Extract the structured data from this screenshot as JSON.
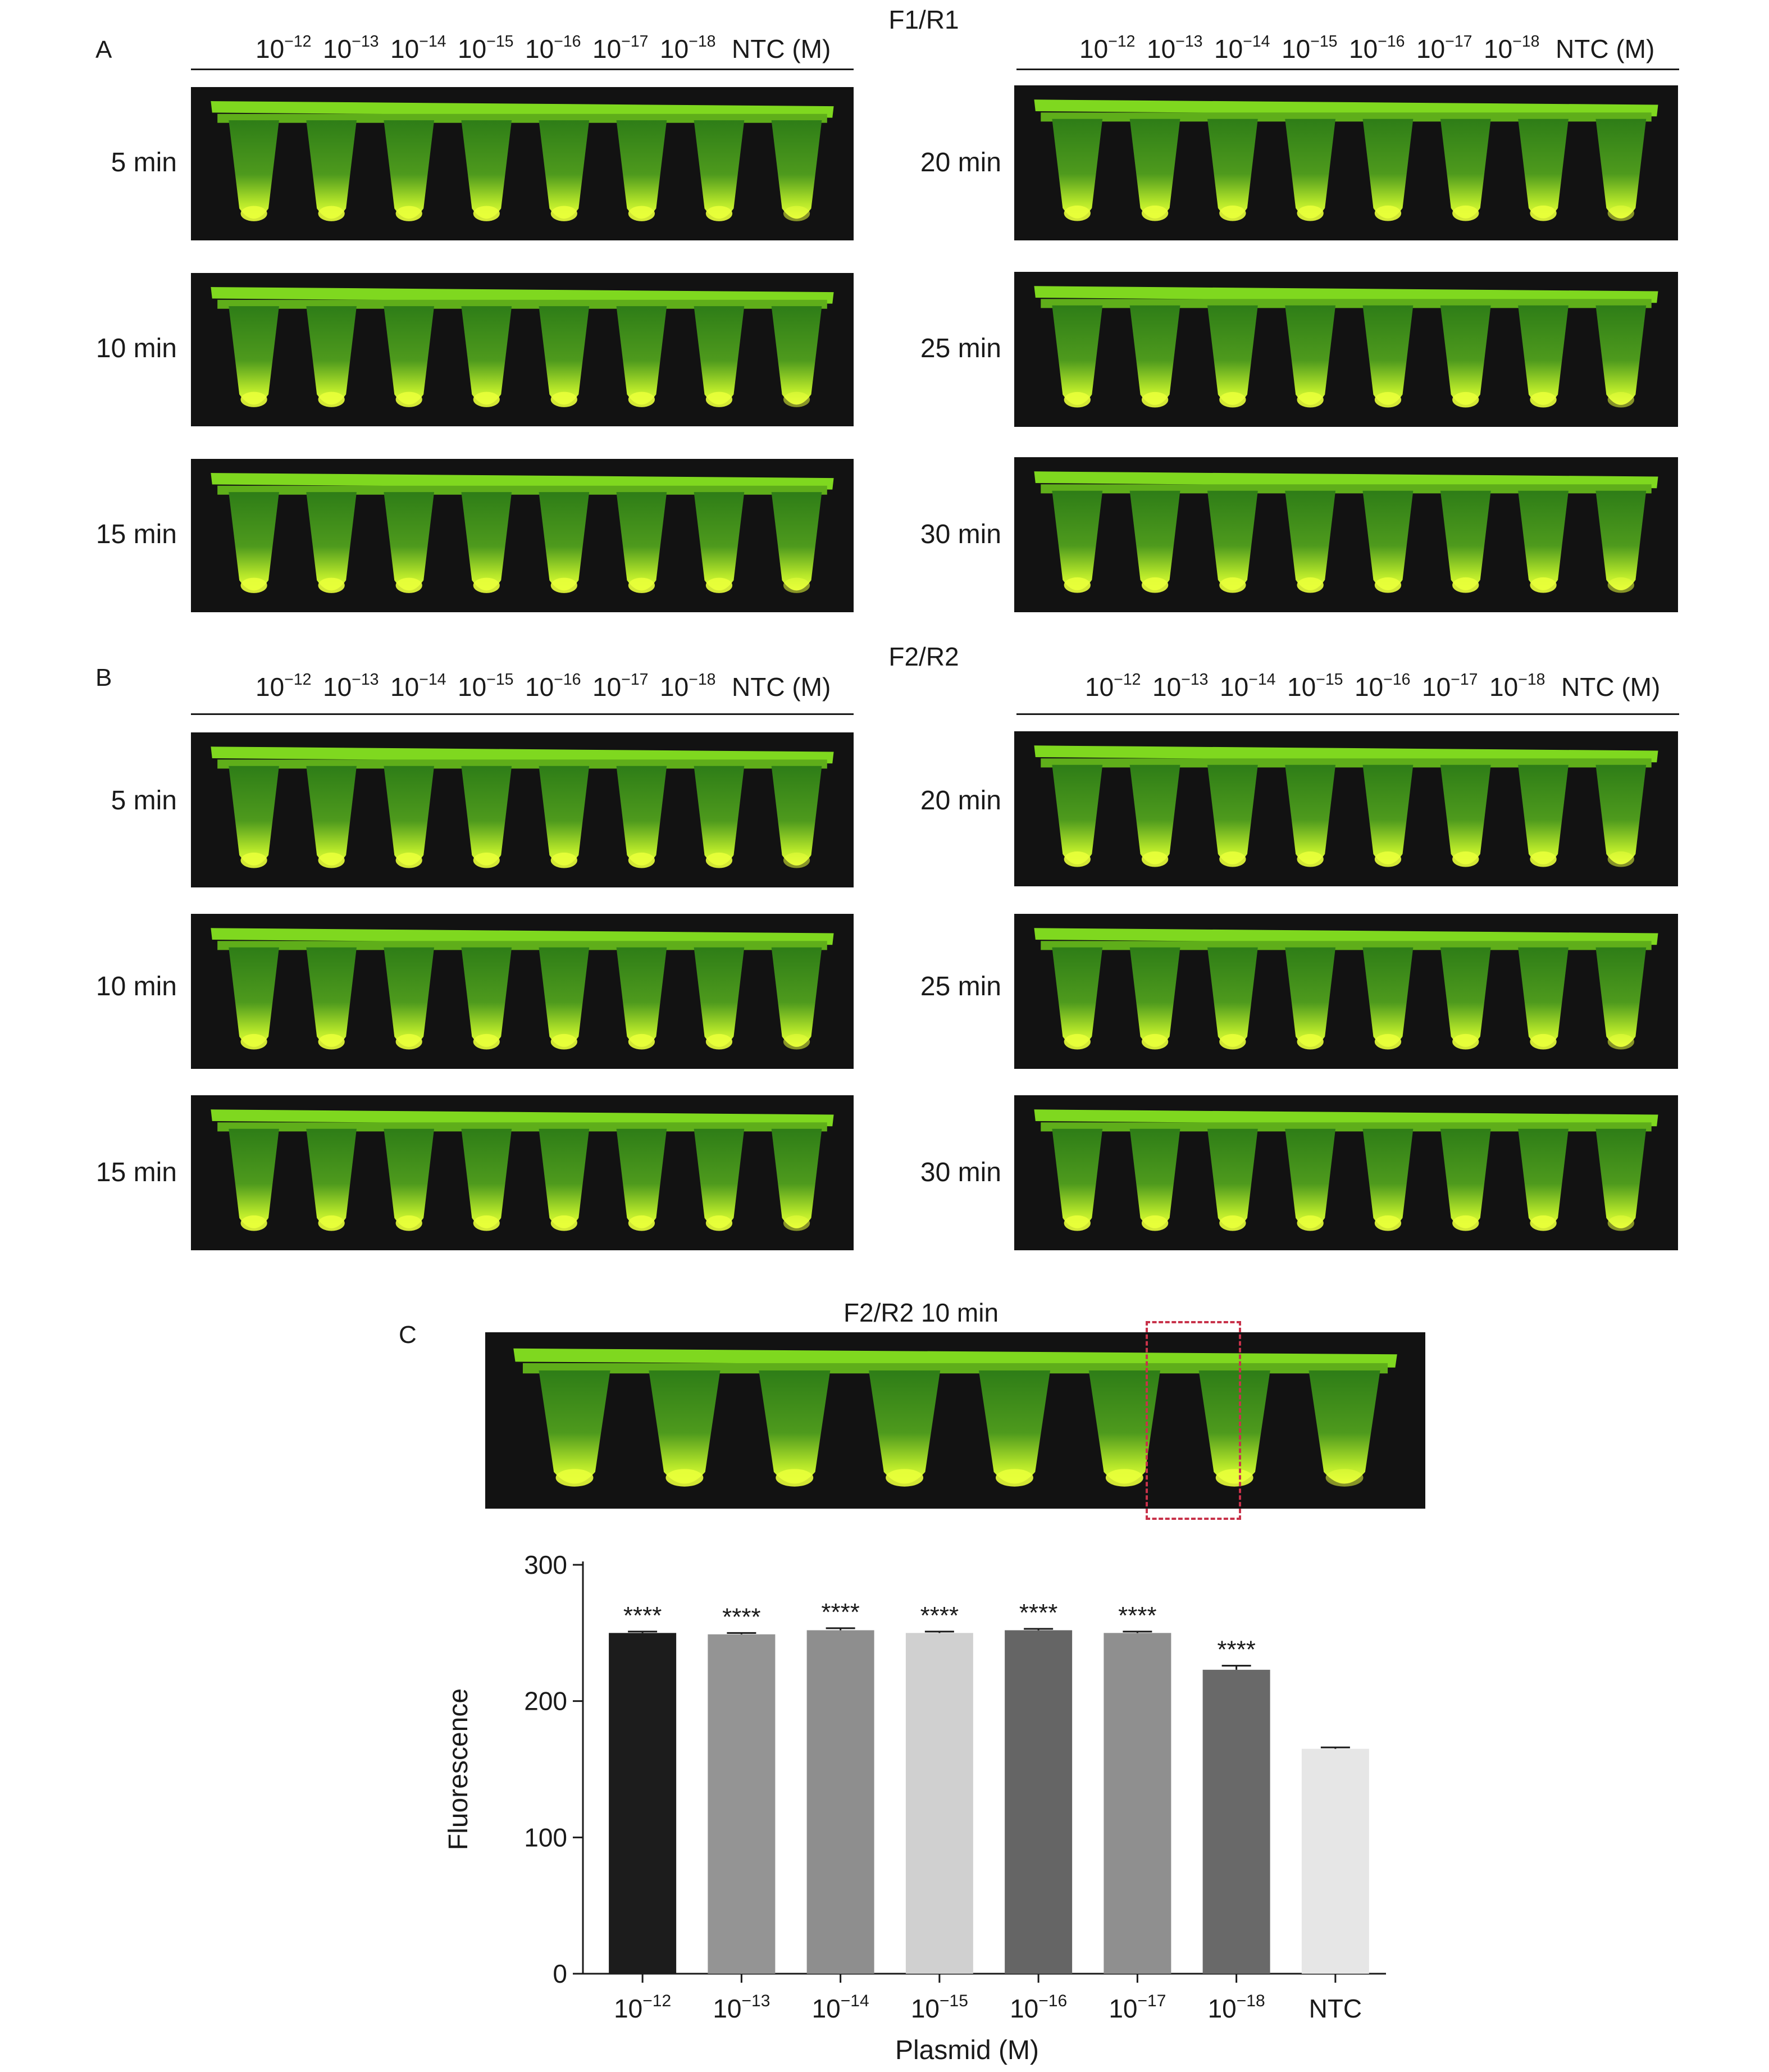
{
  "panel_a": {
    "letter": "A",
    "title": "F1/R1",
    "concentrations_left": [
      "10",
      "10",
      "10",
      "10",
      "10",
      "10",
      "10"
    ],
    "exponents": [
      "−12",
      "−13",
      "−14",
      "−15",
      "−16",
      "−17",
      "−18"
    ],
    "ntc_label": "NTC (M)",
    "times_left": [
      "5 min",
      "10 min",
      "15 min"
    ],
    "times_right": [
      "20 min",
      "25 min",
      "30 min"
    ]
  },
  "panel_b": {
    "letter": "B",
    "title": "F2/R2",
    "exponents": [
      "−12",
      "−13",
      "−14",
      "−15",
      "−16",
      "−17",
      "−18"
    ],
    "ntc_label": "NTC (M)",
    "times_left": [
      "5 min",
      "10 min",
      "15 min"
    ],
    "times_right": [
      "20 min",
      "25 min",
      "30 min"
    ]
  },
  "panel_c": {
    "letter": "C",
    "title": "F2/R2 10 min"
  },
  "colors": {
    "tube_fill": "#7fd81f",
    "tube_bright": "#e8ff3a",
    "photo_bg": "#121212",
    "highlight_box": "#c8324a"
  },
  "chart_data": {
    "type": "bar",
    "categories": [
      "10−12",
      "10−13",
      "10−14",
      "10−15",
      "10−16",
      "10−17",
      "10−18",
      "NTC"
    ],
    "category_base": [
      "10",
      "10",
      "10",
      "10",
      "10",
      "10",
      "10",
      "NTC"
    ],
    "category_exp": [
      "−12",
      "−13",
      "−14",
      "−15",
      "−16",
      "−17",
      "−18",
      ""
    ],
    "values": [
      250,
      249,
      252,
      250,
      252,
      250,
      223,
      165
    ],
    "errors": [
      1,
      1,
      1.5,
      1,
      1,
      1,
      3,
      1
    ],
    "significance": [
      "****",
      "****",
      "****",
      "****",
      "****",
      "****",
      "****",
      ""
    ],
    "bar_colors": [
      "#1c1c1c",
      "#949494",
      "#8e8e8e",
      "#d0d0d0",
      "#656565",
      "#8f8f8f",
      "#696969",
      "#e6e6e6"
    ],
    "xlabel": "Plasmid (M)",
    "ylabel": "Fluorescence",
    "ylim": [
      0,
      300
    ],
    "yticks": [
      "0",
      "100",
      "200",
      "300"
    ]
  }
}
